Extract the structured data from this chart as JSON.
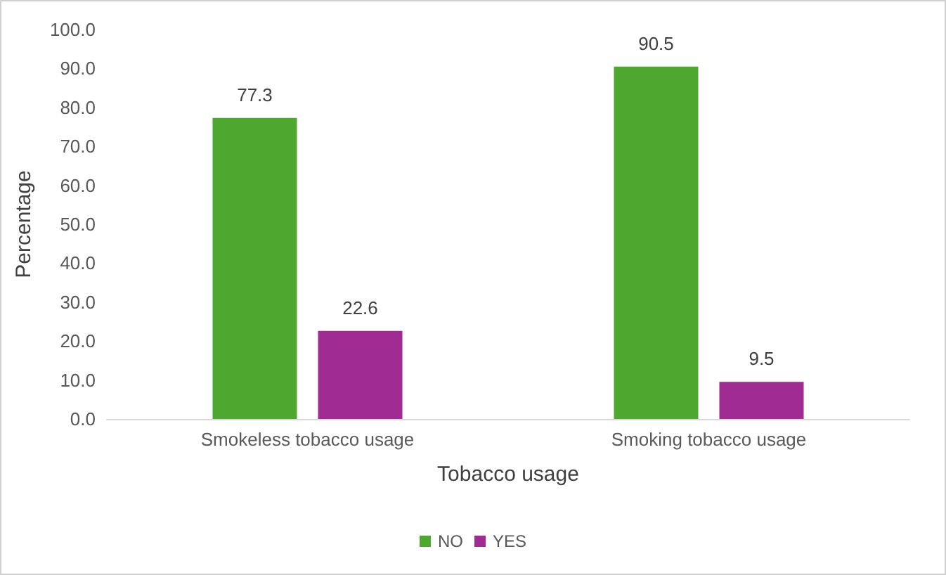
{
  "chart_data": {
    "type": "bar",
    "xlabel": "Tobacco usage",
    "ylabel": "Percentage",
    "categories": [
      "Smokeless tobacco usage",
      "Smoking tobacco usage"
    ],
    "series": [
      {
        "name": "NO",
        "color": "#4ea72e",
        "values": [
          77.3,
          90.5
        ]
      },
      {
        "name": "YES",
        "color": "#a02b93",
        "values": [
          22.6,
          9.5
        ]
      }
    ],
    "ylim": [
      0,
      100
    ],
    "yticks": [
      {
        "value": 0,
        "label": "0.0"
      },
      {
        "value": 10,
        "label": "10.0"
      },
      {
        "value": 20,
        "label": "20.0"
      },
      {
        "value": 30,
        "label": "30.0"
      },
      {
        "value": 40,
        "label": "40.0"
      },
      {
        "value": 50,
        "label": "50.0"
      },
      {
        "value": 60,
        "label": "60.0"
      },
      {
        "value": 70,
        "label": "70.0"
      },
      {
        "value": 80,
        "label": "80.0"
      },
      {
        "value": 90,
        "label": "90.0"
      },
      {
        "value": 100,
        "label": "100.0"
      }
    ],
    "data_labels": true,
    "grid": false,
    "legend": "bottom"
  }
}
